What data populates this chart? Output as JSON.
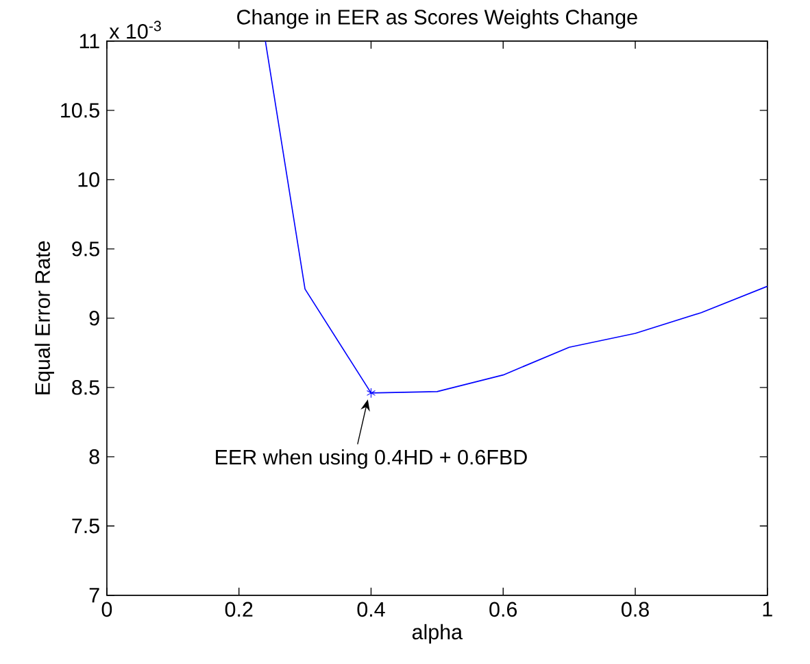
{
  "chart_data": {
    "type": "line",
    "title": "Change in EER as Scores Weights Change",
    "xlabel": "alpha",
    "ylabel": "Equal Error Rate",
    "x": [
      0.24,
      0.3,
      0.4,
      0.5,
      0.6,
      0.7,
      0.8,
      0.9,
      1.0
    ],
    "series": [
      {
        "color": "#0000ff",
        "values": [
          11,
          9.21,
          8.46,
          8.47,
          8.59,
          8.79,
          8.89,
          9.04,
          9.23
        ]
      }
    ],
    "annotations": [
      "x 10$^{-3}$",
      {
        "text": "EER when using 0.4HD + 0.6FBD",
        "x": 0.4,
        "y": 8.46
      }
    ],
    "xlim": [
      0,
      1
    ],
    "ylim": [
      7,
      11
    ],
    "xticks": [
      0,
      0.2,
      0.4,
      0.6,
      0.8,
      1
    ],
    "yticks": [
      7,
      7.5,
      8,
      8.5,
      9,
      9.5,
      10,
      10.5,
      11
    ],
    "marker": "none",
    "line_style": "solid"
  }
}
